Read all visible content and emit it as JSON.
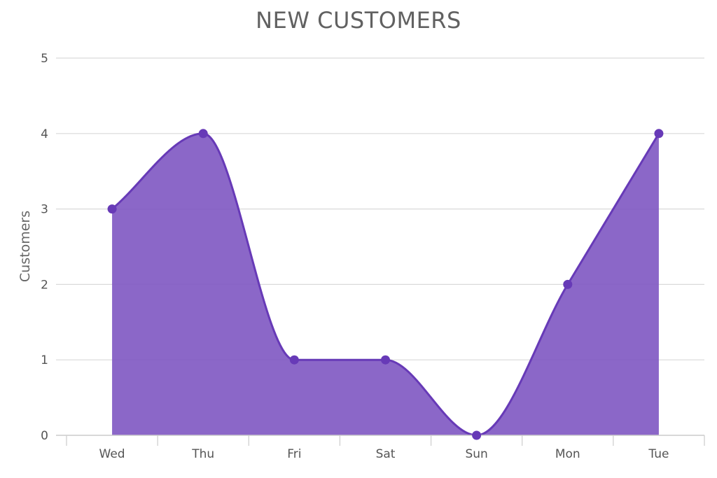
{
  "chart_data": {
    "type": "area",
    "title": "NEW CUSTOMERS",
    "xlabel": "",
    "ylabel": "Customers",
    "categories": [
      "Wed",
      "Thu",
      "Fri",
      "Sat",
      "Sun",
      "Mon",
      "Tue"
    ],
    "series": [
      {
        "values": [
          3,
          4,
          1,
          1,
          0,
          2,
          4
        ]
      }
    ],
    "ylim": [
      0,
      5
    ],
    "yticks": [
      "0",
      "1",
      "2",
      "3",
      "4",
      "5"
    ],
    "grid": true,
    "legend": "none",
    "colors": {
      "line": "#673ab7",
      "fill": "#7e57c2",
      "grid": "#d9d9d9",
      "axis": "#cccccc"
    }
  }
}
